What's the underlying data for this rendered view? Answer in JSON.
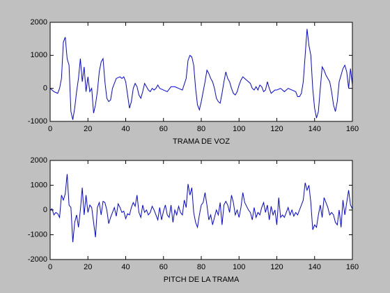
{
  "chart_data": [
    {
      "type": "line",
      "xlabel": "TRAMA DE VOZ",
      "color": "#0000ff",
      "xlim": [
        0,
        160
      ],
      "xticks": [
        0,
        20,
        40,
        60,
        80,
        100,
        120,
        140,
        160
      ],
      "ylim": [
        -1000,
        2000
      ],
      "yticks": [
        -1000,
        0,
        1000,
        2000
      ],
      "x": [
        0,
        2,
        4,
        5,
        6,
        7,
        8,
        9,
        10,
        11,
        12,
        13,
        14,
        15,
        16,
        17,
        18,
        19,
        20,
        21,
        22,
        23,
        24,
        25,
        26,
        27,
        28,
        29,
        30,
        31,
        32,
        33,
        35,
        37,
        38,
        39,
        40,
        41,
        42,
        43,
        44,
        45,
        46,
        47,
        48,
        49,
        50,
        51,
        52,
        53,
        54,
        55,
        56,
        57,
        58,
        60,
        62,
        64,
        66,
        68,
        70,
        72,
        73,
        74,
        75,
        76,
        77,
        78,
        79,
        80,
        81,
        82,
        83,
        84,
        85,
        86,
        87,
        88,
        89,
        90,
        91,
        92,
        93,
        94,
        95,
        96,
        97,
        98,
        99,
        100,
        101,
        102,
        103,
        104,
        106,
        107,
        108,
        109,
        110,
        111,
        112,
        113,
        114,
        115,
        116,
        117,
        118,
        119,
        120,
        122,
        124,
        126,
        128,
        130,
        131,
        132,
        133,
        134,
        135,
        136,
        137,
        138,
        139,
        140,
        141,
        142,
        143,
        144,
        145,
        146,
        147,
        148,
        149,
        150,
        151,
        152,
        153,
        154,
        155,
        156,
        157,
        158,
        159,
        160
      ],
      "values": [
        0,
        -100,
        -150,
        0,
        300,
        1400,
        1550,
        900,
        700,
        -700,
        -950,
        -600,
        -100,
        300,
        900,
        200,
        650,
        -100,
        350,
        -100,
        0,
        -750,
        -500,
        -100,
        500,
        800,
        900,
        200,
        -300,
        -400,
        -350,
        0,
        300,
        350,
        300,
        350,
        200,
        -200,
        -600,
        -400,
        0,
        150,
        50,
        -200,
        -300,
        -100,
        150,
        50,
        -50,
        -100,
        0,
        -50,
        0,
        100,
        0,
        -50,
        -100,
        50,
        50,
        0,
        -50,
        300,
        850,
        1000,
        950,
        700,
        0,
        -500,
        -650,
        -400,
        -100,
        200,
        550,
        450,
        300,
        200,
        0,
        -300,
        -400,
        -450,
        -150,
        200,
        500,
        300,
        200,
        0,
        -150,
        -200,
        -100,
        100,
        250,
        350,
        300,
        250,
        150,
        0,
        -50,
        50,
        -50,
        100,
        50,
        -100,
        -50,
        200,
        0,
        -150,
        -100,
        -50,
        -50,
        0,
        -100,
        0,
        -50,
        -100,
        -250,
        -250,
        -150,
        200,
        1000,
        1800,
        1300,
        1000,
        0,
        -600,
        -900,
        -700,
        0,
        650,
        550,
        400,
        300,
        200,
        -100,
        -500,
        -700,
        -400,
        200,
        400,
        600,
        700,
        500,
        0,
        600,
        100
      ]
    },
    {
      "type": "line",
      "xlabel": "PITCH DE LA TRAMA",
      "color": "#0000ff",
      "xlim": [
        0,
        160
      ],
      "xticks": [
        0,
        20,
        40,
        60,
        80,
        100,
        120,
        140,
        160
      ],
      "ylim": [
        -2000,
        2000
      ],
      "yticks": [
        -2000,
        -1000,
        0,
        1000,
        2000
      ],
      "x": [
        0,
        1,
        2,
        3,
        4,
        5,
        6,
        7,
        8,
        9,
        10,
        11,
        12,
        13,
        14,
        15,
        16,
        17,
        18,
        19,
        20,
        21,
        22,
        23,
        24,
        25,
        26,
        27,
        28,
        29,
        30,
        31,
        32,
        33,
        34,
        35,
        36,
        37,
        38,
        39,
        40,
        41,
        42,
        43,
        44,
        45,
        46,
        47,
        48,
        49,
        50,
        51,
        52,
        53,
        54,
        55,
        56,
        57,
        58,
        59,
        60,
        61,
        62,
        63,
        64,
        65,
        66,
        67,
        68,
        69,
        70,
        71,
        72,
        73,
        74,
        75,
        76,
        77,
        78,
        79,
        80,
        81,
        82,
        83,
        84,
        85,
        86,
        87,
        88,
        89,
        90,
        91,
        92,
        93,
        94,
        95,
        96,
        97,
        98,
        99,
        100,
        101,
        102,
        103,
        104,
        105,
        106,
        107,
        108,
        109,
        110,
        111,
        112,
        113,
        114,
        115,
        116,
        117,
        118,
        119,
        120,
        121,
        122,
        123,
        124,
        125,
        126,
        127,
        128,
        129,
        130,
        131,
        132,
        133,
        134,
        135,
        136,
        137,
        138,
        139,
        140,
        141,
        142,
        143,
        144,
        145,
        146,
        147,
        148,
        149,
        150,
        151,
        152,
        153,
        154,
        155,
        156,
        157,
        158,
        159,
        160
      ],
      "values": [
        0,
        50,
        -200,
        -100,
        -150,
        -300,
        600,
        400,
        650,
        1450,
        200,
        100,
        -1300,
        -500,
        -200,
        -700,
        0,
        900,
        -200,
        600,
        -100,
        200,
        100,
        -500,
        -1100,
        100,
        300,
        -200,
        350,
        300,
        0,
        -550,
        -300,
        -100,
        100,
        -250,
        250,
        100,
        -100,
        -50,
        -350,
        -150,
        -200,
        100,
        300,
        150,
        600,
        -100,
        -300,
        200,
        -100,
        0,
        -200,
        -100,
        150,
        0,
        -200,
        -400,
        100,
        -400,
        -50,
        200,
        -200,
        -300,
        200,
        -500,
        0,
        -200,
        150,
        -100,
        -200,
        400,
        100,
        1050,
        600,
        900,
        -100,
        -500,
        -700,
        -200,
        200,
        300,
        700,
        200,
        -400,
        -200,
        -600,
        -300,
        0,
        -200,
        300,
        -600,
        200,
        350,
        200,
        -100,
        600,
        300,
        -200,
        0,
        -300,
        100,
        700,
        300,
        150,
        0,
        -100,
        -400,
        100,
        -300,
        -100,
        -200,
        100,
        300,
        -100,
        200,
        -400,
        150,
        -200,
        0,
        -600,
        500,
        -300,
        -200,
        -300,
        -100,
        100,
        -200,
        0,
        -250,
        -100,
        -200,
        0,
        200,
        400,
        1100,
        800,
        1000,
        300,
        -800,
        -600,
        -700,
        -200,
        200,
        -300,
        500,
        300,
        100,
        -200,
        -100,
        -200,
        -500,
        -600,
        0,
        -700,
        400,
        -200,
        300,
        800,
        200,
        50
      ]
    }
  ]
}
